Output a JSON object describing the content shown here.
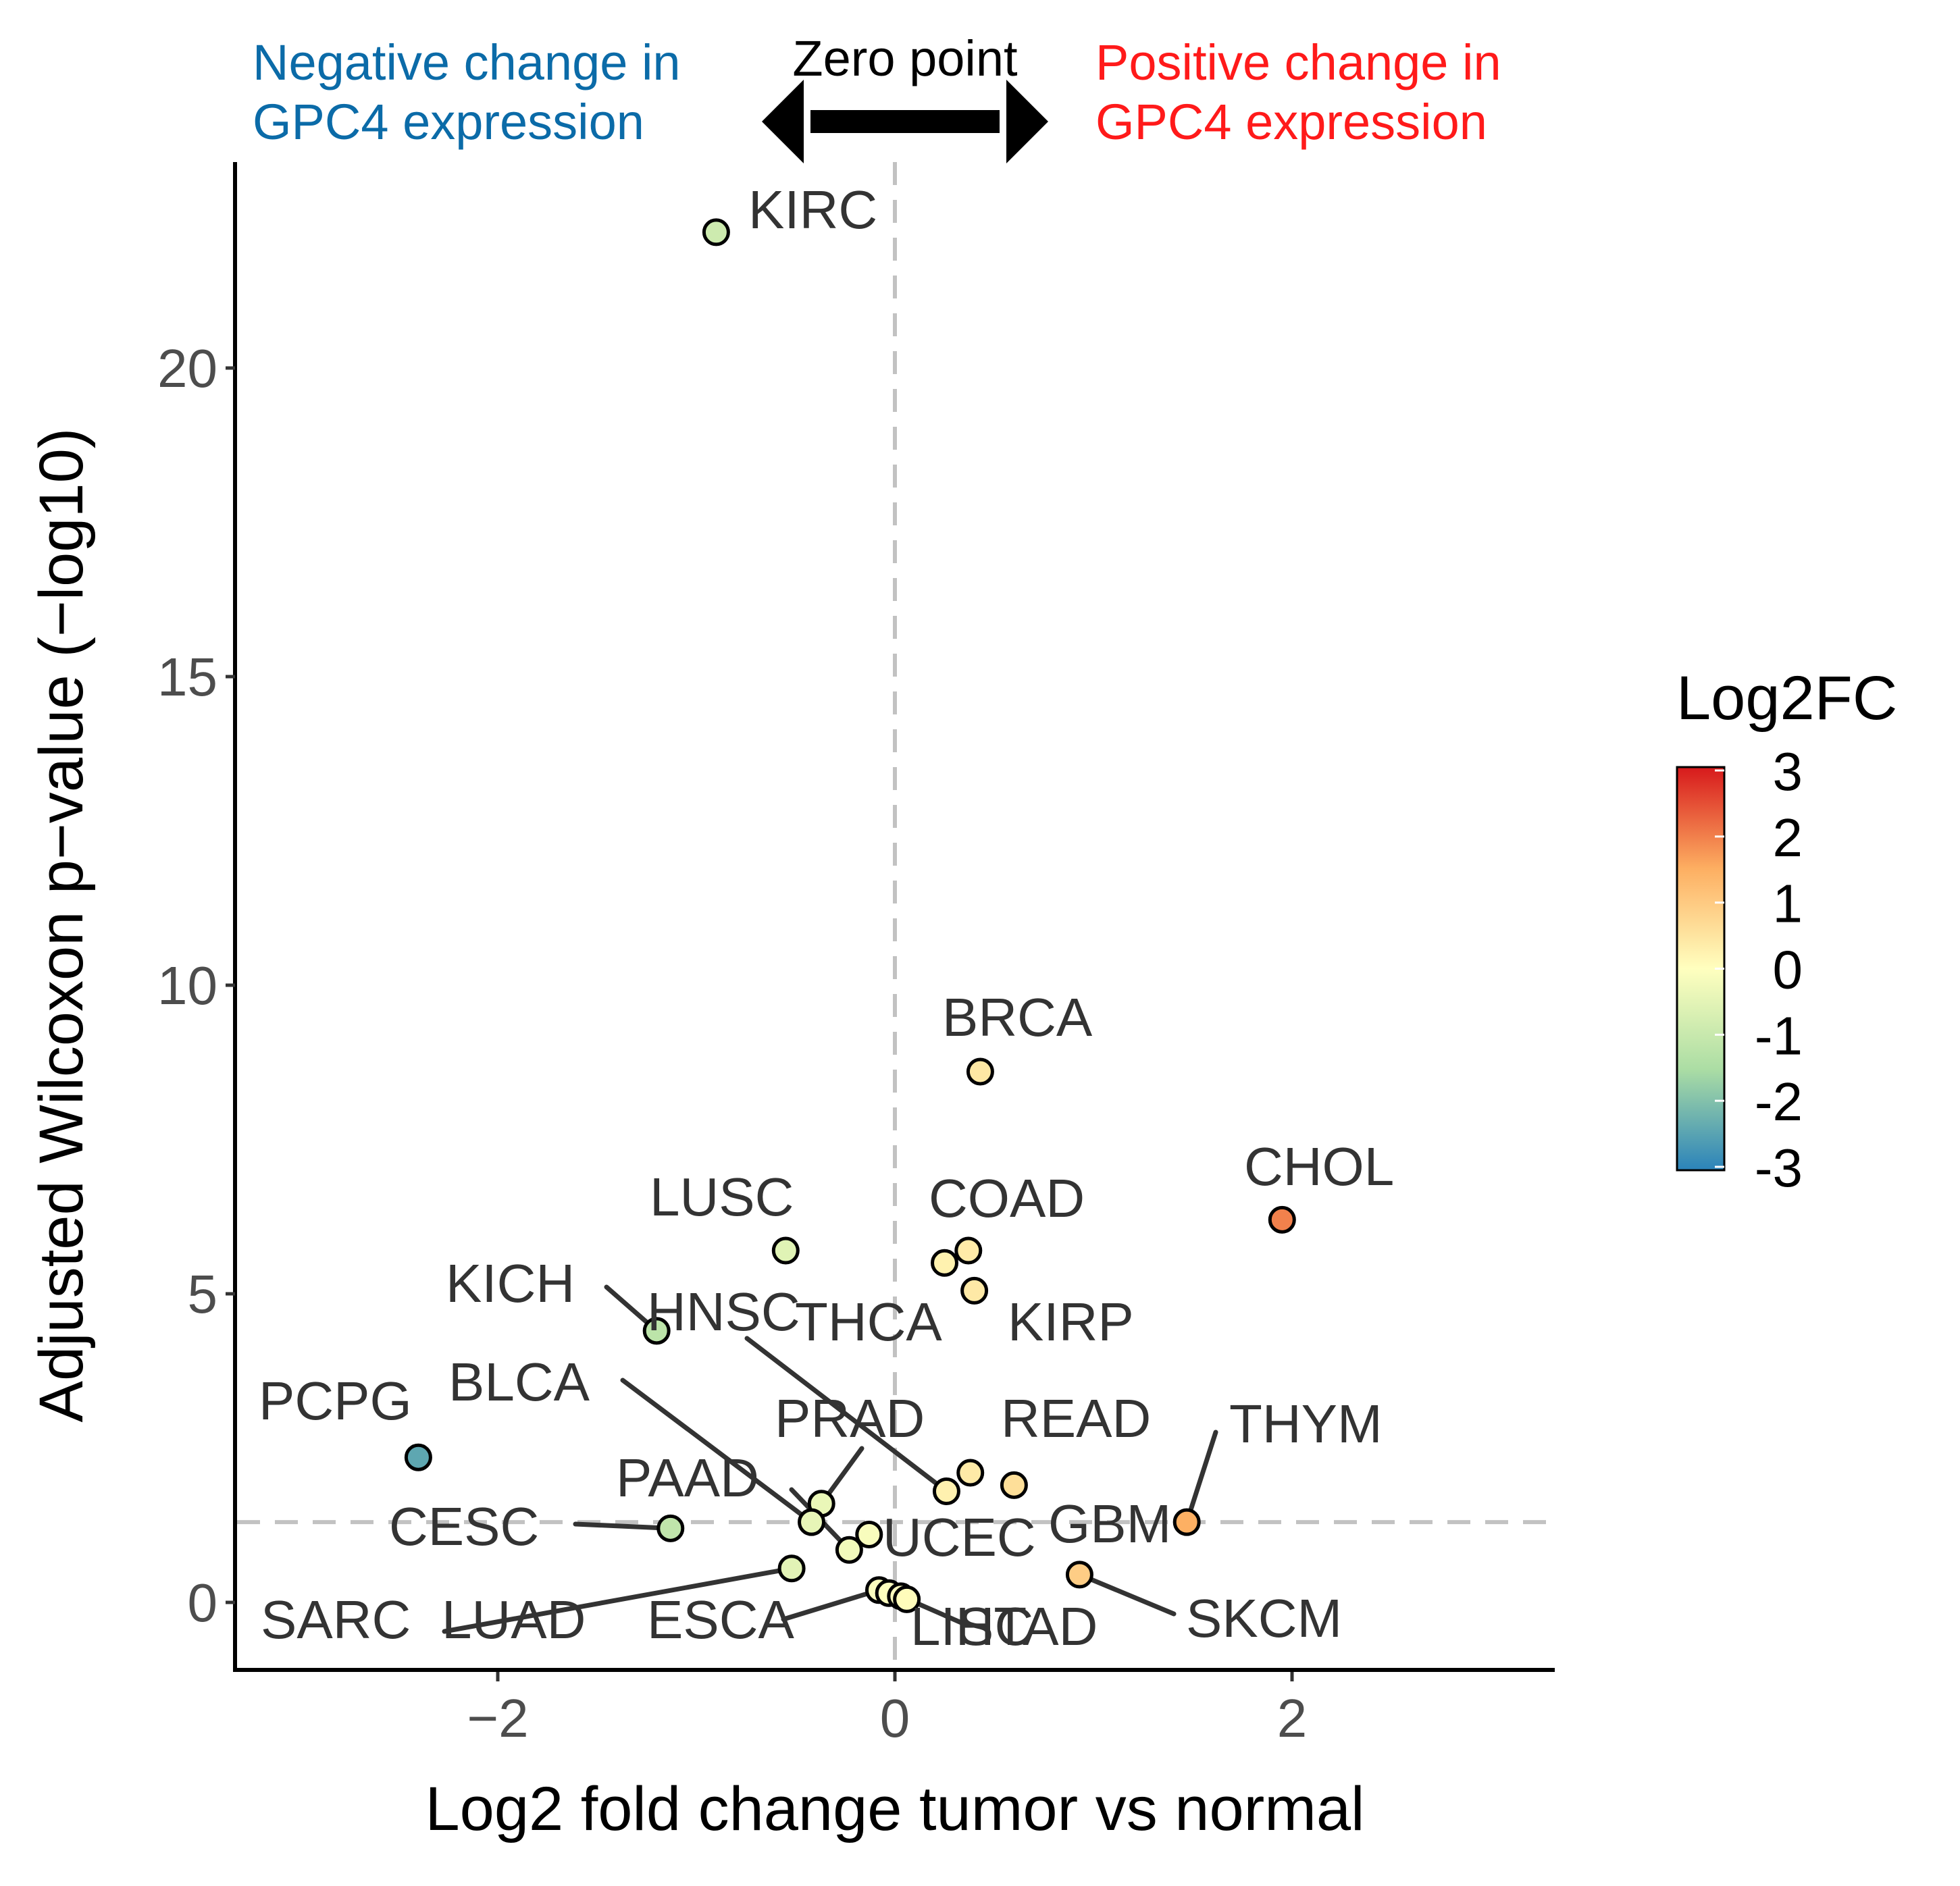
{
  "chart_data": {
    "type": "scatter",
    "xlabel": "Log2 fold change tumor vs normal",
    "ylabel": "Adjusted  Wilcoxon  p−value (−log10)",
    "xlim": [
      -3.3,
      3.3
    ],
    "ylim": [
      -1.1,
      23.0
    ],
    "x_ticks": [
      {
        "value": -2,
        "label": "−2"
      },
      {
        "value": 0,
        "label": "0"
      },
      {
        "value": 2,
        "label": "2"
      }
    ],
    "y_ticks": [
      {
        "value": 0,
        "label": "0"
      },
      {
        "value": 5,
        "label": "5"
      },
      {
        "value": 10,
        "label": "10"
      },
      {
        "value": 15,
        "label": "15"
      },
      {
        "value": 20,
        "label": "20"
      }
    ],
    "reference_lines": {
      "x": 0,
      "y": 1.3
    },
    "annotations": {
      "negative": "Negative change in\nGPC4 expression",
      "zero": "Zero point",
      "positive": "Positive change in\nGPC4 expression"
    },
    "legend": {
      "title": "Log2FC",
      "min": -3,
      "max": 3,
      "ticks": [
        "3",
        "2",
        "1",
        "0",
        "-1",
        "-2",
        "-3"
      ],
      "colors": [
        "#d7191c",
        "#fdae61",
        "#ffffbf",
        "#abdda4",
        "#2b83ba"
      ]
    },
    "points": [
      {
        "label": "KIRC",
        "x": -0.9,
        "y": 22.2
      },
      {
        "label": "BRCA",
        "x": 0.43,
        "y": 8.6
      },
      {
        "label": "CHOL",
        "x": 1.95,
        "y": 6.2
      },
      {
        "label": "COAD",
        "x": 0.37,
        "y": 5.7
      },
      {
        "label": "THCA",
        "x": 0.25,
        "y": 5.5
      },
      {
        "label": "LUSC",
        "x": -0.55,
        "y": 5.7
      },
      {
        "label": "KIRP",
        "x": 0.4,
        "y": 5.05
      },
      {
        "label": "KICH",
        "x": -1.2,
        "y": 4.4
      },
      {
        "label": "PCPG",
        "x": -2.4,
        "y": 2.35
      },
      {
        "label": "READ",
        "x": 0.38,
        "y": 2.1
      },
      {
        "label": "GBM",
        "x": 0.6,
        "y": 1.9
      },
      {
        "label": "HNSC",
        "x": 0.26,
        "y": 1.8
      },
      {
        "label": "PRAD",
        "x": -0.37,
        "y": 1.6
      },
      {
        "label": "BLCA",
        "x": -0.42,
        "y": 1.3
      },
      {
        "label": "THYM",
        "x": 1.47,
        "y": 1.3
      },
      {
        "label": "CESC",
        "x": -1.13,
        "y": 1.2
      },
      {
        "label": "UCEC",
        "x": -0.13,
        "y": 1.1
      },
      {
        "label": "PAAD",
        "x": -0.23,
        "y": 0.85
      },
      {
        "label": "SARC",
        "x": -0.52,
        "y": 0.55
      },
      {
        "label": "SKCM",
        "x": 0.93,
        "y": 0.45
      },
      {
        "label": "ESCA",
        "x": -0.08,
        "y": 0.2
      },
      {
        "label": "LUAD",
        "x": -0.03,
        "y": 0.15
      },
      {
        "label": "LIHC",
        "x": 0.03,
        "y": 0.1
      },
      {
        "label": "STAD",
        "x": 0.06,
        "y": 0.05
      }
    ]
  }
}
